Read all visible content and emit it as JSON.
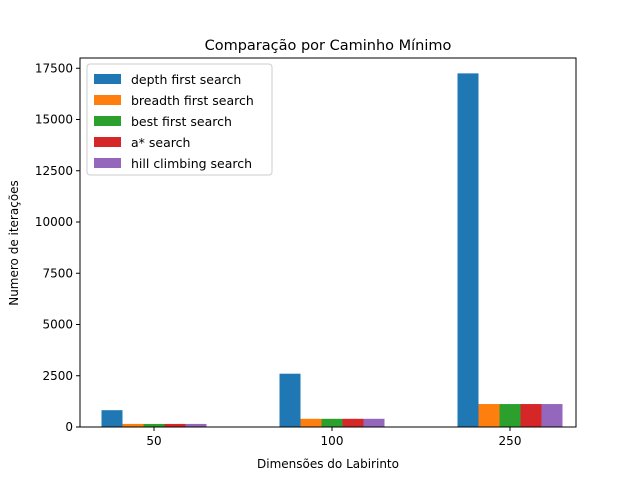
{
  "chart_data": {
    "type": "bar",
    "title": "Comparação por Caminho Mínimo",
    "xlabel": "Dimensões do Labirinto",
    "ylabel": "Numero de iterações",
    "categories": [
      "50",
      "100",
      "250"
    ],
    "ylim": [
      0,
      18000
    ],
    "yticks": [
      0,
      2500,
      5000,
      7500,
      10000,
      12500,
      15000,
      17500
    ],
    "legend_position": "top-left",
    "grid": false,
    "series": [
      {
        "name": "depth first search",
        "color": "#1f77b4",
        "values": [
          820,
          2600,
          17250
        ]
      },
      {
        "name": "breadth first search",
        "color": "#ff7f0e",
        "values": [
          150,
          400,
          1120
        ]
      },
      {
        "name": "best first search",
        "color": "#2ca02c",
        "values": [
          150,
          400,
          1120
        ]
      },
      {
        "name": "a* search",
        "color": "#d62728",
        "values": [
          150,
          400,
          1120
        ]
      },
      {
        "name": "hill climbing search",
        "color": "#9467bd",
        "values": [
          150,
          400,
          1120
        ]
      }
    ]
  }
}
